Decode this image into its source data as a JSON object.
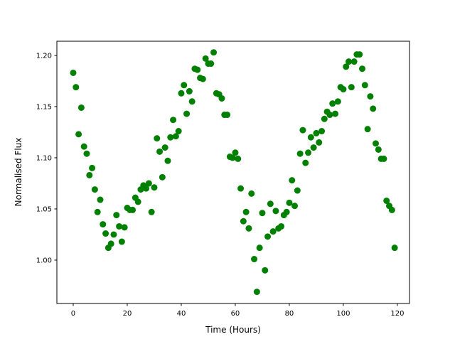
{
  "chart_data": {
    "type": "scatter",
    "title": "",
    "xlabel": "Time (Hours)",
    "ylabel": "Normalised Flux",
    "xlim": [
      -6.05,
      124.5
    ],
    "ylim": [
      0.9576,
      1.2139
    ],
    "xticks": [
      0,
      20,
      40,
      60,
      80,
      100,
      120
    ],
    "yticks": [
      1.0,
      1.05,
      1.1,
      1.15,
      1.2
    ],
    "grid": false,
    "marker_color": "#008000",
    "x": [
      0,
      1,
      2,
      3,
      4,
      5,
      6,
      7,
      8,
      9,
      10,
      11,
      12,
      13,
      14,
      15,
      16,
      17,
      18,
      19,
      20,
      21,
      22,
      23,
      24,
      25,
      26,
      27,
      28,
      29,
      30,
      31,
      32,
      33,
      34,
      35,
      36,
      37,
      38,
      39,
      40,
      41,
      42,
      43,
      44,
      45,
      46,
      47,
      48,
      49,
      50,
      51,
      52,
      53,
      54,
      55,
      56,
      57,
      58,
      59,
      60,
      61,
      62,
      63,
      64,
      65,
      66,
      67,
      68,
      69,
      70,
      71,
      72,
      73,
      74,
      75,
      76,
      77,
      78,
      79,
      80,
      81,
      82,
      83,
      84,
      85,
      86,
      87,
      88,
      89,
      90,
      91,
      92,
      93,
      94,
      95,
      96,
      97,
      98,
      99,
      100,
      101,
      102,
      103,
      104,
      105,
      106,
      107,
      108,
      109,
      110,
      111,
      112,
      113,
      114,
      115,
      116,
      117,
      118,
      119
    ],
    "y": [
      1.183,
      1.169,
      1.123,
      1.149,
      1.111,
      1.104,
      1.083,
      1.09,
      1.069,
      1.047,
      1.059,
      1.035,
      1.026,
      1.012,
      1.016,
      1.025,
      1.044,
      1.033,
      1.018,
      1.032,
      1.051,
      1.049,
      1.049,
      1.061,
      1.057,
      1.069,
      1.073,
      1.07,
      1.075,
      1.047,
      1.071,
      1.119,
      1.106,
      1.081,
      1.11,
      1.097,
      1.12,
      1.137,
      1.121,
      1.126,
      1.163,
      1.171,
      1.143,
      1.165,
      1.155,
      1.187,
      1.186,
      1.178,
      1.177,
      1.197,
      1.192,
      1.192,
      1.203,
      1.163,
      1.162,
      1.158,
      1.142,
      1.142,
      1.101,
      1.1,
      1.105,
      1.099,
      1.07,
      1.038,
      1.047,
      1.031,
      1.065,
      1.001,
      0.969,
      1.012,
      1.046,
      0.99,
      1.023,
      1.055,
      1.028,
      1.048,
      1.031,
      1.033,
      1.044,
      1.047,
      1.056,
      1.078,
      1.053,
      1.068,
      1.104,
      1.127,
      1.095,
      1.105,
      1.12,
      1.11,
      1.124,
      1.115,
      1.126,
      1.138,
      1.145,
      1.142,
      1.153,
      1.143,
      1.155,
      1.169,
      1.167,
      1.189,
      1.194,
      1.169,
      1.194,
      1.201,
      1.201,
      1.187,
      1.171,
      1.128,
      1.16,
      1.148,
      1.114,
      1.108,
      1.099,
      1.099,
      1.058,
      1.053,
      1.049,
      1.012
    ]
  }
}
